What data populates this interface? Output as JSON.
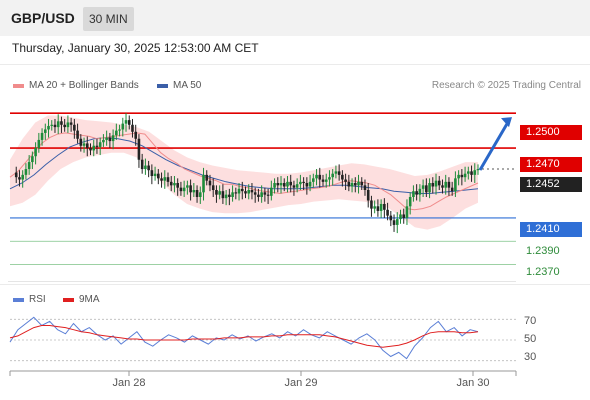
{
  "header": {
    "symbol": "GBP/USD",
    "timeframe": "30 MIN",
    "timestamp": "Thursday, January 30, 2025 12:53:00 AM CET"
  },
  "legend": {
    "items": [
      {
        "label": "MA 20 + Bollinger Bands",
        "color": "#f08c8c"
      },
      {
        "label": "MA 50",
        "color": "#3b5fa8"
      }
    ],
    "copyright": "Research © 2025 Trading Central"
  },
  "rsi_legend": {
    "items": [
      {
        "label": "RSI",
        "color": "#5b7fd6"
      },
      {
        "label": "9MA",
        "color": "#e02020"
      }
    ]
  },
  "price_levels": [
    {
      "value": 1.25,
      "label": "1.2500",
      "color": "#e00000",
      "style": "box"
    },
    {
      "value": 1.247,
      "label": "1.2470",
      "color": "#e00000",
      "style": "box"
    },
    {
      "value": 1.2452,
      "label": "1.2452",
      "color": "#222222",
      "style": "box"
    },
    {
      "value": 1.241,
      "label": "1.2410",
      "color": "#2f6fd6",
      "style": "box"
    },
    {
      "value": 1.239,
      "label": "1.2390",
      "color": "#2e8b3a",
      "style": "plain"
    },
    {
      "value": 1.237,
      "label": "1.2370",
      "color": "#2e8b3a",
      "style": "plain"
    }
  ],
  "rsi_levels": [
    "70",
    "50",
    "30"
  ],
  "x_labels": [
    "Jan 28",
    "Jan 29",
    "Jan 30"
  ],
  "chart_data": {
    "type": "candlestick",
    "symbol": "GBP/USD",
    "interval": "30 MIN",
    "ylim": [
      1.2355,
      1.2513
    ],
    "close_series": [
      1.2449,
      1.2445,
      1.2443,
      1.2447,
      1.2452,
      1.2458,
      1.2463,
      1.247,
      1.2477,
      1.2483,
      1.2486,
      1.2489,
      1.249,
      1.2488,
      1.2493,
      1.249,
      1.2488,
      1.2492,
      1.249,
      1.2485,
      1.2478,
      1.2472,
      1.2474,
      1.247,
      1.2468,
      1.2472,
      1.2471,
      1.2475,
      1.2477,
      1.2479,
      1.2476,
      1.2481,
      1.2485,
      1.2486,
      1.2491,
      1.2494,
      1.249,
      1.2484,
      1.2478,
      1.246,
      1.2452,
      1.2455,
      1.2451,
      1.2446,
      1.2448,
      1.2444,
      1.2442,
      1.2445,
      1.2441,
      1.2438,
      1.244,
      1.2436,
      1.2433,
      1.2436,
      1.2438,
      1.2432,
      1.2434,
      1.2428,
      1.2432,
      1.2447,
      1.2442,
      1.2438,
      1.2434,
      1.243,
      1.2433,
      1.2427,
      1.243,
      1.2428,
      1.2432,
      1.2431,
      1.2435,
      1.2433,
      1.2431,
      1.2434,
      1.2432,
      1.243,
      1.2428,
      1.2432,
      1.243,
      1.2429,
      1.2436,
      1.244,
      1.2438,
      1.244,
      1.2437,
      1.2441,
      1.2438,
      1.2436,
      1.2439,
      1.2441,
      1.244,
      1.2437,
      1.2441,
      1.2444,
      1.2447,
      1.2443,
      1.2441,
      1.2443,
      1.2445,
      1.2448,
      1.245,
      1.2447,
      1.2443,
      1.2441,
      1.2437,
      1.244,
      1.2438,
      1.2441,
      1.2438,
      1.2434,
      1.2425,
      1.2418,
      1.242,
      1.2416,
      1.2422,
      1.2417,
      1.2412,
      1.2408,
      1.2404,
      1.2409,
      1.2413,
      1.241,
      1.242,
      1.2428,
      1.2433,
      1.243,
      1.2435,
      1.2438,
      1.2432,
      1.244,
      1.2437,
      1.2442,
      1.2438,
      1.2436,
      1.2441,
      1.2436,
      1.2433,
      1.2444,
      1.2447,
      1.2445,
      1.2448,
      1.245,
      1.2447,
      1.2451,
      1.2452
    ],
    "ma20_series": [
      1.2445,
      1.245,
      1.2458,
      1.2466,
      1.2474,
      1.2479,
      1.2482,
      1.2483,
      1.2482,
      1.2481,
      1.248,
      1.2478,
      1.2479,
      1.248,
      1.2481,
      1.2482,
      1.2483,
      1.2482,
      1.2474,
      1.2466,
      1.2461,
      1.2457,
      1.2452,
      1.2449,
      1.2446,
      1.2444,
      1.2442,
      1.2439,
      1.2439,
      1.2437,
      1.2436,
      1.2434,
      1.2433,
      1.2432,
      1.2431,
      1.2432,
      1.2433,
      1.2434,
      1.2435,
      1.2436,
      1.2437,
      1.2439,
      1.2441,
      1.2442,
      1.2441,
      1.244,
      1.2438,
      1.2434,
      1.243,
      1.2424,
      1.2418,
      1.2417,
      1.2418,
      1.242,
      1.2424,
      1.2428,
      1.2431,
      1.2434,
      1.2437,
      1.244
    ],
    "ma50_series": [
      1.2435,
      1.244,
      1.2447,
      1.2456,
      1.2464,
      1.2471,
      1.2475,
      1.2478,
      1.2479,
      1.2478,
      1.2476,
      1.2472,
      1.2466,
      1.246,
      1.2455,
      1.2451,
      1.2447,
      1.2444,
      1.2441,
      1.2439,
      1.2437,
      1.2436,
      1.2435,
      1.2435,
      1.2435,
      1.2436,
      1.2437,
      1.2438,
      1.2438,
      1.2437,
      1.2436,
      1.2435,
      1.2433,
      1.2432,
      1.2431,
      1.2431,
      1.2432,
      1.2433,
      1.2434,
      1.2435
    ],
    "bollinger_upper": [
      1.246,
      1.2478,
      1.2492,
      1.2498,
      1.2498,
      1.2496,
      1.2494,
      1.2493,
      1.2492,
      1.249,
      1.2488,
      1.2484,
      1.2476,
      1.2468,
      1.2462,
      1.2458,
      1.2455,
      1.2453,
      1.2451,
      1.245,
      1.2449,
      1.2448,
      1.2448,
      1.2449,
      1.2451,
      1.2453,
      1.2455,
      1.2457,
      1.2456,
      1.2454,
      1.2452,
      1.2449,
      1.2446,
      1.2447,
      1.245,
      1.2454,
      1.2458,
      1.2458
    ],
    "bollinger_lower": [
      1.242,
      1.2423,
      1.243,
      1.2442,
      1.2452,
      1.2458,
      1.2462,
      1.2464,
      1.2466,
      1.2466,
      1.2462,
      1.2452,
      1.244,
      1.243,
      1.2422,
      1.2418,
      1.2415,
      1.2414,
      1.2414,
      1.2415,
      1.2417,
      1.2419,
      1.2421,
      1.2422,
      1.2424,
      1.2425,
      1.2426,
      1.2425,
      1.2424,
      1.2422,
      1.2418,
      1.241,
      1.2402,
      1.24,
      1.2403,
      1.241,
      1.2418,
      1.2423
    ],
    "forecast_target": 1.25,
    "rsi": {
      "levels": [
        70,
        50,
        30
      ],
      "ylim": [
        20,
        80
      ],
      "rsi_series": [
        48,
        60,
        66,
        72,
        64,
        68,
        60,
        56,
        66,
        58,
        62,
        55,
        50,
        54,
        46,
        52,
        58,
        48,
        44,
        50,
        55,
        52,
        48,
        54,
        50,
        46,
        52,
        50,
        55,
        51,
        54,
        49,
        53,
        56,
        52,
        58,
        54,
        60,
        55,
        52,
        58,
        54,
        50,
        46,
        52,
        56,
        50,
        40,
        34,
        38,
        32,
        44,
        52,
        62,
        68,
        58,
        62,
        54,
        60,
        58
      ],
      "ma9_series": [
        52,
        54,
        58,
        62,
        64,
        64,
        63,
        62,
        60,
        58,
        57,
        55,
        54,
        53,
        52,
        51,
        51,
        50,
        50,
        50,
        50,
        50,
        50,
        51,
        51,
        51,
        51,
        52,
        52,
        52,
        53,
        53,
        53,
        54,
        54,
        55,
        55,
        55,
        55,
        55,
        54,
        53,
        51,
        49,
        47,
        45,
        44,
        43,
        44,
        45,
        47,
        50,
        54,
        57,
        58,
        58,
        58,
        57,
        57,
        58
      ]
    }
  }
}
